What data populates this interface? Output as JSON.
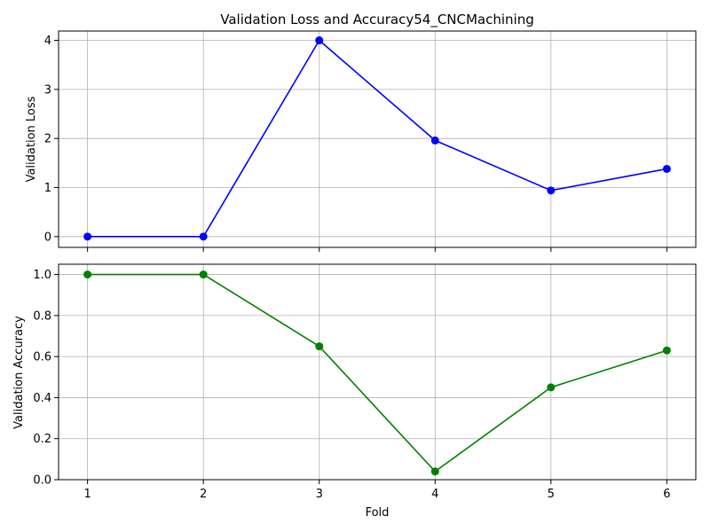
{
  "chart_data": {
    "type": "line",
    "title": "Validation Loss and Accuracy54_CNCMachining",
    "xlabel": "Fold",
    "x": [
      1,
      2,
      3,
      4,
      5,
      6
    ],
    "xticks": [
      "1",
      "2",
      "3",
      "4",
      "5",
      "6"
    ],
    "xlim": [
      0.75,
      6.25
    ],
    "grid": true,
    "panels": [
      {
        "ylabel": "Validation Loss",
        "ylim": [
          -0.22,
          4.19
        ],
        "yticks": [
          "0",
          "1",
          "2",
          "3",
          "4"
        ],
        "ytick_values": [
          0,
          1,
          2,
          3,
          4
        ],
        "series": [
          {
            "values": [
              0.0,
              0.0,
              4.0,
              1.96,
              0.94,
              1.38
            ],
            "color": "#0000ff"
          }
        ]
      },
      {
        "ylabel": "Validation Accuracy",
        "ylim": [
          0.0,
          1.05
        ],
        "yticks": [
          "0.0",
          "0.2",
          "0.4",
          "0.6",
          "0.8",
          "1.0"
        ],
        "ytick_values": [
          0.0,
          0.2,
          0.4,
          0.6,
          0.8,
          1.0
        ],
        "series": [
          {
            "values": [
              1.0,
              1.0,
              0.65,
              0.04,
              0.45,
              0.63
            ],
            "color": "#008000"
          }
        ]
      }
    ]
  }
}
